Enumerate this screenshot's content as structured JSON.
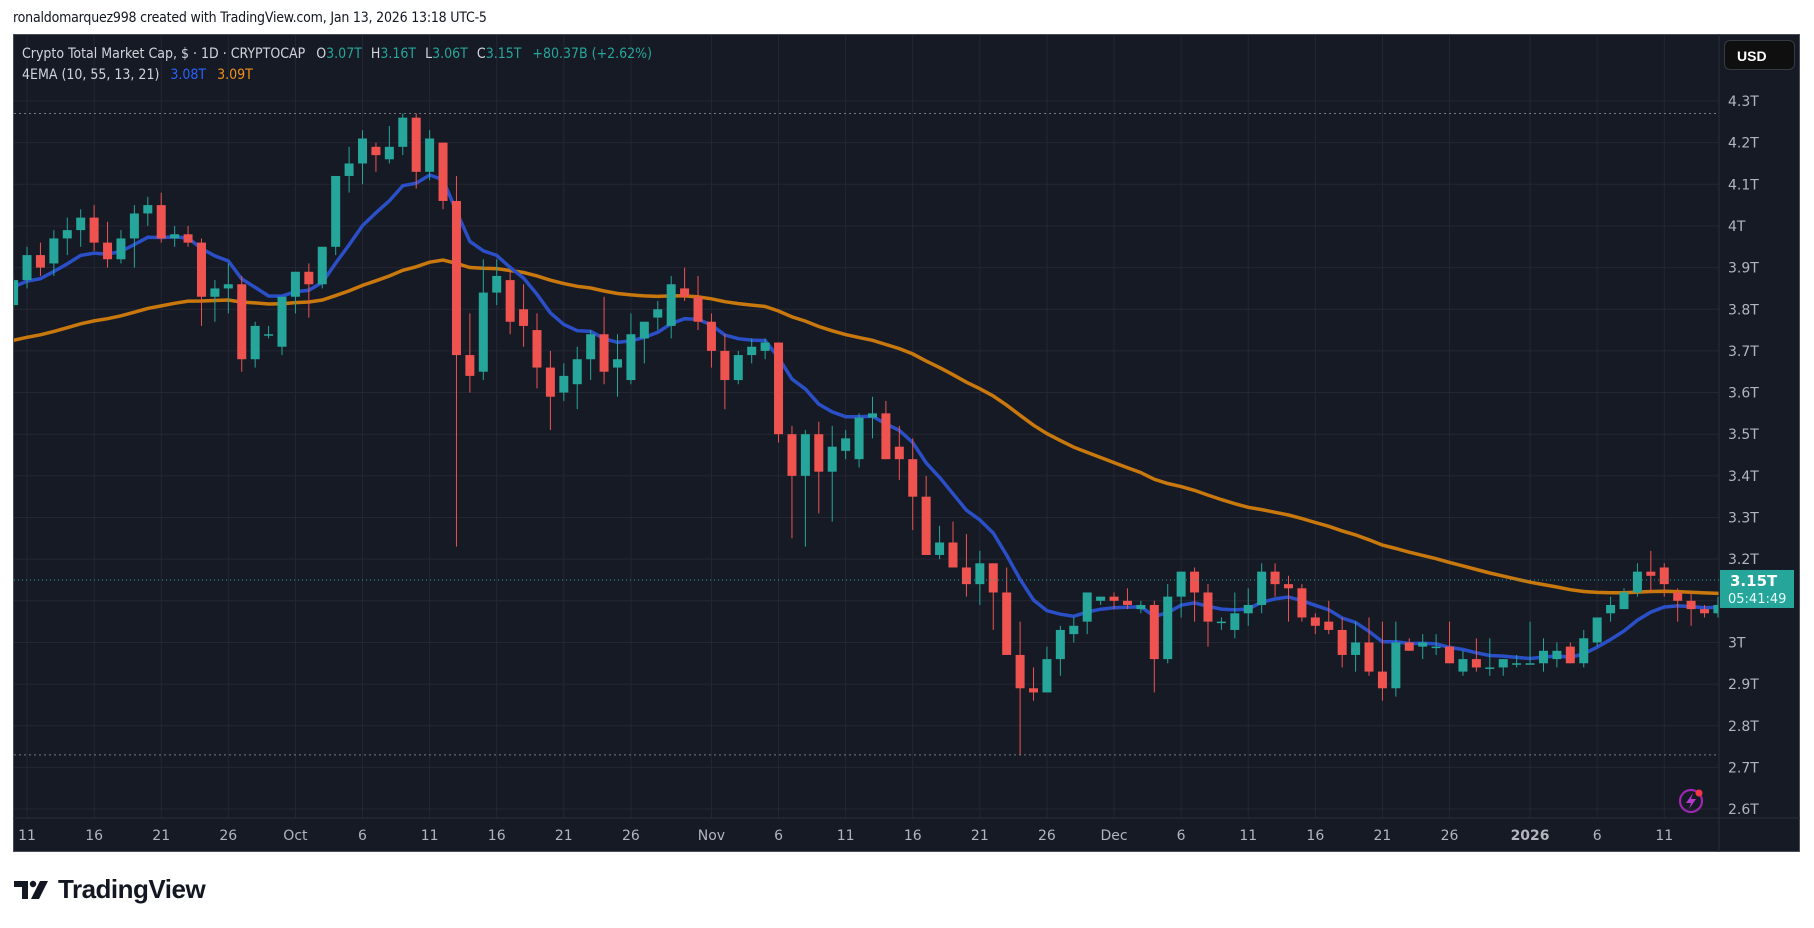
{
  "credit": "ronaldomarquez998 created with TradingView.com, Jan 13, 2026 13:18 UTC-5",
  "legend": {
    "symbol": "Crypto Total Market Cap, $ · 1D · CRYPTOCAP",
    "o_label": "O",
    "o": "3.07T",
    "h_label": "H",
    "h": "3.16T",
    "l_label": "L",
    "l": "3.06T",
    "c_label": "C",
    "c": "3.15T",
    "change": "+80.37B (+2.62%)",
    "indicator": "4EMA (10, 55, 13, 21)",
    "ema_fast": "3.08T",
    "ema_slow": "3.09T"
  },
  "currency_button": "USD",
  "last_price": {
    "label": "3.15T",
    "countdown": "05:41:49"
  },
  "logo_text": "TradingView",
  "colors": {
    "bg": "#161a25",
    "up": "#26a69a",
    "down": "#ef5350",
    "ema_fast": "#2a4fc7",
    "ema_slow": "#c8780c",
    "grid": "#242733",
    "text": "#b2b5be"
  },
  "chart_data": {
    "type": "candlestick",
    "title": "Crypto Total Market Cap, $ · 1D · CRYPTOCAP",
    "xlabel": "",
    "ylabel": "USD",
    "ylim": [
      2.6,
      4.3
    ],
    "y_ticks": [
      "4.3T",
      "4.2T",
      "4.1T",
      "4T",
      "3.9T",
      "3.8T",
      "3.7T",
      "3.6T",
      "3.5T",
      "3.4T",
      "3.3T",
      "3.2T",
      "3.1T",
      "3T",
      "2.9T",
      "2.8T",
      "2.7T",
      "2.6T"
    ],
    "x_ticks": [
      {
        "label": "11",
        "day": 1
      },
      {
        "label": "16",
        "day": 6
      },
      {
        "label": "21",
        "day": 11
      },
      {
        "label": "26",
        "day": 16
      },
      {
        "label": "Oct",
        "day": 21
      },
      {
        "label": "6",
        "day": 26
      },
      {
        "label": "11",
        "day": 31
      },
      {
        "label": "16",
        "day": 36
      },
      {
        "label": "21",
        "day": 41
      },
      {
        "label": "26",
        "day": 46
      },
      {
        "label": "Nov",
        "day": 52
      },
      {
        "label": "6",
        "day": 57
      },
      {
        "label": "11",
        "day": 62
      },
      {
        "label": "16",
        "day": 67
      },
      {
        "label": "21",
        "day": 72
      },
      {
        "label": "26",
        "day": 77
      },
      {
        "label": "Dec",
        "day": 82
      },
      {
        "label": "6",
        "day": 87
      },
      {
        "label": "11",
        "day": 92
      },
      {
        "label": "16",
        "day": 97
      },
      {
        "label": "21",
        "day": 102
      },
      {
        "label": "26",
        "day": 107
      },
      {
        "label": "2026",
        "day": 113,
        "bold": true
      },
      {
        "label": "6",
        "day": 118
      },
      {
        "label": "11",
        "day": 123
      }
    ],
    "high_marker": 4.27,
    "low_marker": 2.73,
    "candles": [
      [
        3.81,
        3.88,
        3.8,
        3.87
      ],
      [
        3.87,
        3.95,
        3.85,
        3.93
      ],
      [
        3.93,
        3.96,
        3.88,
        3.9
      ],
      [
        3.91,
        3.99,
        3.88,
        3.97
      ],
      [
        3.97,
        4.02,
        3.93,
        3.99
      ],
      [
        3.99,
        4.04,
        3.95,
        4.02
      ],
      [
        4.02,
        4.05,
        3.94,
        3.96
      ],
      [
        3.96,
        4.01,
        3.9,
        3.92
      ],
      [
        3.92,
        3.99,
        3.91,
        3.97
      ],
      [
        3.97,
        4.05,
        3.9,
        4.03
      ],
      [
        4.03,
        4.07,
        4.0,
        4.05
      ],
      [
        4.05,
        4.08,
        3.96,
        3.97
      ],
      [
        3.97,
        4.0,
        3.95,
        3.98
      ],
      [
        3.98,
        4.0,
        3.95,
        3.96
      ],
      [
        3.96,
        3.97,
        3.76,
        3.83
      ],
      [
        3.83,
        3.87,
        3.77,
        3.85
      ],
      [
        3.85,
        3.91,
        3.79,
        3.86
      ],
      [
        3.86,
        3.88,
        3.65,
        3.68
      ],
      [
        3.68,
        3.77,
        3.66,
        3.76
      ],
      [
        3.74,
        3.76,
        3.73,
        3.74
      ],
      [
        3.71,
        3.83,
        3.69,
        3.83
      ],
      [
        3.83,
        3.89,
        3.79,
        3.89
      ],
      [
        3.89,
        3.91,
        3.78,
        3.86
      ],
      [
        3.86,
        3.95,
        3.85,
        3.95
      ],
      [
        3.95,
        4.12,
        3.93,
        4.12
      ],
      [
        4.12,
        4.19,
        4.08,
        4.15
      ],
      [
        4.15,
        4.23,
        4.1,
        4.21
      ],
      [
        4.19,
        4.2,
        4.13,
        4.17
      ],
      [
        4.16,
        4.24,
        4.15,
        4.19
      ],
      [
        4.19,
        4.27,
        4.17,
        4.26
      ],
      [
        4.26,
        4.27,
        4.09,
        4.13
      ],
      [
        4.13,
        4.23,
        4.11,
        4.21
      ],
      [
        4.2,
        4.2,
        4.04,
        4.06
      ],
      [
        4.06,
        4.12,
        3.23,
        3.69
      ],
      [
        3.69,
        3.79,
        3.6,
        3.64
      ],
      [
        3.65,
        3.92,
        3.63,
        3.84
      ],
      [
        3.84,
        3.92,
        3.81,
        3.88
      ],
      [
        3.87,
        3.89,
        3.74,
        3.77
      ],
      [
        3.8,
        3.86,
        3.71,
        3.76
      ],
      [
        3.75,
        3.79,
        3.61,
        3.66
      ],
      [
        3.66,
        3.7,
        3.51,
        3.59
      ],
      [
        3.6,
        3.67,
        3.58,
        3.64
      ],
      [
        3.62,
        3.71,
        3.56,
        3.68
      ],
      [
        3.68,
        3.75,
        3.63,
        3.74
      ],
      [
        3.74,
        3.83,
        3.62,
        3.65
      ],
      [
        3.66,
        3.74,
        3.59,
        3.68
      ],
      [
        3.63,
        3.79,
        3.62,
        3.74
      ],
      [
        3.73,
        3.77,
        3.67,
        3.77
      ],
      [
        3.78,
        3.82,
        3.75,
        3.8
      ],
      [
        3.76,
        3.88,
        3.73,
        3.86
      ],
      [
        3.85,
        3.9,
        3.82,
        3.83
      ],
      [
        3.83,
        3.88,
        3.75,
        3.77
      ],
      [
        3.77,
        3.79,
        3.66,
        3.7
      ],
      [
        3.7,
        3.74,
        3.56,
        3.63
      ],
      [
        3.63,
        3.7,
        3.62,
        3.69
      ],
      [
        3.69,
        3.73,
        3.67,
        3.71
      ],
      [
        3.7,
        3.73,
        3.68,
        3.72
      ],
      [
        3.72,
        3.72,
        3.48,
        3.5
      ],
      [
        3.5,
        3.52,
        3.25,
        3.4
      ],
      [
        3.4,
        3.51,
        3.23,
        3.5
      ],
      [
        3.5,
        3.53,
        3.31,
        3.41
      ],
      [
        3.41,
        3.52,
        3.29,
        3.47
      ],
      [
        3.46,
        3.51,
        3.44,
        3.49
      ],
      [
        3.44,
        3.55,
        3.42,
        3.54
      ],
      [
        3.54,
        3.59,
        3.49,
        3.55
      ],
      [
        3.55,
        3.58,
        3.44,
        3.44
      ],
      [
        3.47,
        3.52,
        3.39,
        3.44
      ],
      [
        3.44,
        3.49,
        3.27,
        3.35
      ],
      [
        3.35,
        3.4,
        3.21,
        3.21
      ],
      [
        3.21,
        3.28,
        3.2,
        3.24
      ],
      [
        3.24,
        3.29,
        3.18,
        3.18
      ],
      [
        3.18,
        3.26,
        3.11,
        3.14
      ],
      [
        3.14,
        3.22,
        3.09,
        3.19
      ],
      [
        3.19,
        3.19,
        3.03,
        3.12
      ],
      [
        3.12,
        3.18,
        2.98,
        2.97
      ],
      [
        2.97,
        3.05,
        2.73,
        2.89
      ],
      [
        2.89,
        2.94,
        2.86,
        2.88
      ],
      [
        2.88,
        2.99,
        2.89,
        2.96
      ],
      [
        2.96,
        3.04,
        2.92,
        3.03
      ],
      [
        3.02,
        3.06,
        3.0,
        3.04
      ],
      [
        3.05,
        3.09,
        3.02,
        3.12
      ],
      [
        3.1,
        3.11,
        3.09,
        3.11
      ],
      [
        3.11,
        3.12,
        3.08,
        3.1
      ],
      [
        3.1,
        3.13,
        3.08,
        3.09
      ],
      [
        3.08,
        3.1,
        3.07,
        3.09
      ],
      [
        3.09,
        3.1,
        2.88,
        2.96
      ],
      [
        2.96,
        3.14,
        2.95,
        3.11
      ],
      [
        3.11,
        3.17,
        3.06,
        3.17
      ],
      [
        3.17,
        3.18,
        3.05,
        3.12
      ],
      [
        3.12,
        3.14,
        2.99,
        3.05
      ],
      [
        3.05,
        3.06,
        3.03,
        3.05
      ],
      [
        3.03,
        3.12,
        3.01,
        3.07
      ],
      [
        3.07,
        3.13,
        3.04,
        3.09
      ],
      [
        3.09,
        3.19,
        3.07,
        3.17
      ],
      [
        3.17,
        3.19,
        3.11,
        3.14
      ],
      [
        3.14,
        3.16,
        3.05,
        3.13
      ],
      [
        3.13,
        3.14,
        3.05,
        3.06
      ],
      [
        3.06,
        3.07,
        3.02,
        3.04
      ],
      [
        3.05,
        3.1,
        3.02,
        3.03
      ],
      [
        3.03,
        3.06,
        2.94,
        2.97
      ],
      [
        2.97,
        3.05,
        2.93,
        3.0
      ],
      [
        3.0,
        3.06,
        2.92,
        2.93
      ],
      [
        2.93,
        3.05,
        2.86,
        2.89
      ],
      [
        2.89,
        3.05,
        2.87,
        3.0
      ],
      [
        3.0,
        3.01,
        2.98,
        2.98
      ],
      [
        2.99,
        3.02,
        2.96,
        3.0
      ],
      [
        2.99,
        3.02,
        2.97,
        2.99
      ],
      [
        2.99,
        3.05,
        2.95,
        2.95
      ],
      [
        2.93,
        2.98,
        2.92,
        2.96
      ],
      [
        2.96,
        3.01,
        2.93,
        2.94
      ],
      [
        2.94,
        3.01,
        2.92,
        2.94
      ],
      [
        2.94,
        2.96,
        2.92,
        2.96
      ],
      [
        2.95,
        2.97,
        2.94,
        2.95
      ],
      [
        2.95,
        3.05,
        2.95,
        2.95
      ],
      [
        2.95,
        3.01,
        2.93,
        2.98
      ],
      [
        2.96,
        3.0,
        2.94,
        2.98
      ],
      [
        2.99,
        3.0,
        2.95,
        2.95
      ],
      [
        2.95,
        3.03,
        2.94,
        3.01
      ],
      [
        3.0,
        3.05,
        2.99,
        3.06
      ],
      [
        3.07,
        3.11,
        3.05,
        3.09
      ],
      [
        3.08,
        3.13,
        3.08,
        3.12
      ],
      [
        3.12,
        3.19,
        3.11,
        3.17
      ],
      [
        3.17,
        3.22,
        3.12,
        3.16
      ],
      [
        3.18,
        3.19,
        3.11,
        3.14
      ],
      [
        3.12,
        3.13,
        3.05,
        3.1
      ],
      [
        3.1,
        3.12,
        3.04,
        3.08
      ],
      [
        3.08,
        3.09,
        3.06,
        3.07
      ],
      [
        3.07,
        3.11,
        3.06,
        3.09
      ],
      [
        3.09,
        3.13,
        3.04,
        3.09
      ],
      [
        3.07,
        3.16,
        3.06,
        3.15
      ]
    ],
    "series": [
      {
        "name": "EMA fast",
        "color": "#2a4fc7"
      },
      {
        "name": "EMA slow (55)",
        "color": "#c8780c"
      }
    ]
  }
}
